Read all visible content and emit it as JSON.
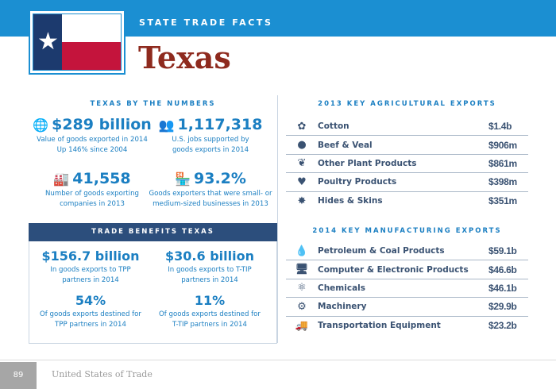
{
  "header": {
    "kicker": "STATE TRADE FACTS",
    "title": "Texas"
  },
  "numbers": {
    "heading": "TEXAS BY THE NUMBERS",
    "items": [
      {
        "icon": "globe-icon",
        "value": "$289 billion",
        "lines": [
          "Value of goods exported in 2014",
          "Up 146% since 2004"
        ]
      },
      {
        "icon": "workers-icon",
        "value": "1,117,318",
        "lines": [
          "U.S. jobs supported by",
          "goods exports in 2014"
        ]
      },
      {
        "icon": "factory-icon",
        "value": "41,558",
        "lines": [
          "Number of goods exporting",
          "companies in 2013"
        ]
      },
      {
        "icon": "storefront-icon",
        "value": "93.2%",
        "lines": [
          "Goods exporters that were small- or",
          "medium-sized businesses in 2013"
        ]
      }
    ]
  },
  "benefits": {
    "heading": "TRADE BENEFITS TEXAS",
    "items": [
      {
        "value": "$156.7 billion",
        "lines": [
          "In goods exports to TPP",
          "partners in 2014"
        ]
      },
      {
        "value": "$30.6 billion",
        "lines": [
          "In goods exports to T-TIP",
          "partners in 2014"
        ]
      },
      {
        "value": "54%",
        "lines": [
          "Of goods exports destined for",
          "TPP partners in 2014"
        ]
      },
      {
        "value": "11%",
        "lines": [
          "Of goods exports destined for",
          "T-TIP partners in 2014"
        ]
      }
    ]
  },
  "agricultural": {
    "heading": "2013 KEY AGRICULTURAL EXPORTS",
    "rows": [
      {
        "icon": "cotton-icon",
        "label": "Cotton",
        "value": "$1.4b"
      },
      {
        "icon": "steak-icon",
        "label": "Beef & Veal",
        "value": "$906m"
      },
      {
        "icon": "plant-icon",
        "label": "Other Plant Products",
        "value": "$861m"
      },
      {
        "icon": "chicken-icon",
        "label": "Poultry Products",
        "value": "$398m"
      },
      {
        "icon": "hide-icon",
        "label": "Hides & Skins",
        "value": "$351m"
      }
    ]
  },
  "manufacturing": {
    "heading": "2014 KEY MANUFACTURING EXPORTS",
    "rows": [
      {
        "icon": "oil-drop-icon",
        "label": "Petroleum & Coal Products",
        "value": "$59.1b"
      },
      {
        "icon": "computer-icon",
        "label": "Computer & Electronic Products",
        "value": "$46.6b"
      },
      {
        "icon": "molecule-icon",
        "label": "Chemicals",
        "value": "$46.1b"
      },
      {
        "icon": "gears-icon",
        "label": "Machinery",
        "value": "$29.9b"
      },
      {
        "icon": "truck-icon",
        "label": "Transportation Equipment",
        "value": "$23.2b"
      }
    ]
  },
  "footer": {
    "page": "89",
    "text": "United States of Trade"
  },
  "colors": {
    "band": "#1b8fd2",
    "title": "#8e2a1e",
    "navy": "#2c4e7c",
    "stat": "#1b7fc2"
  }
}
